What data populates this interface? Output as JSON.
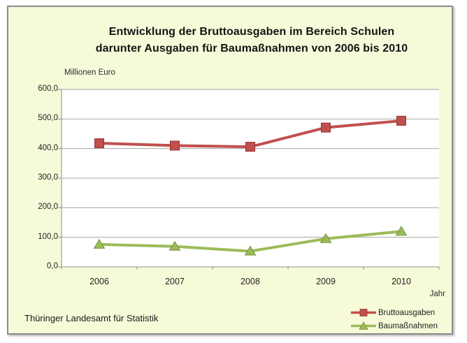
{
  "chart": {
    "title_line1": "Entwicklung der Bruttoausgaben im Bereich Schulen",
    "title_line2": "darunter Ausgaben für Baumaßnahmen von 2006 bis 2010",
    "colors": {
      "chart_background": "#F7FAD9",
      "plot_background": "#FFFFFF",
      "frame_border": "#8C8C8C",
      "gridline": "#A6A6A6",
      "axis": "#8C8C8C",
      "text": "#1F1F1F"
    }
  },
  "footer": {
    "source": "Thüringer Landesamt für Statistik"
  },
  "chart_data": {
    "type": "line",
    "title": "Entwicklung der Bruttoausgaben im Bereich Schulen darunter Ausgaben für Baumaßnahmen von 2006 bis 2010",
    "xlabel": "Jahr",
    "ylabel": "Millionen Euro",
    "categories": [
      "2006",
      "2007",
      "2008",
      "2009",
      "2010"
    ],
    "series": [
      {
        "name": "Bruttoausgaben",
        "values": [
          418,
          410,
          406,
          471,
          494
        ],
        "color": "#C0504D",
        "edge_color": "#943634",
        "marker": "square"
      },
      {
        "name": "Baumaßnahmen",
        "values": [
          76,
          69,
          53,
          95,
          120
        ],
        "color": "#9BBB59",
        "edge_color": "#77933C",
        "marker": "triangle"
      }
    ],
    "ylim": [
      0,
      600
    ],
    "ytick_step": 100,
    "ytick_labels": [
      "0,0",
      "100,0",
      "200,0",
      "300,0",
      "400,0",
      "500,0",
      "600,0"
    ],
    "grid": true,
    "legend_position": "bottom-right"
  }
}
